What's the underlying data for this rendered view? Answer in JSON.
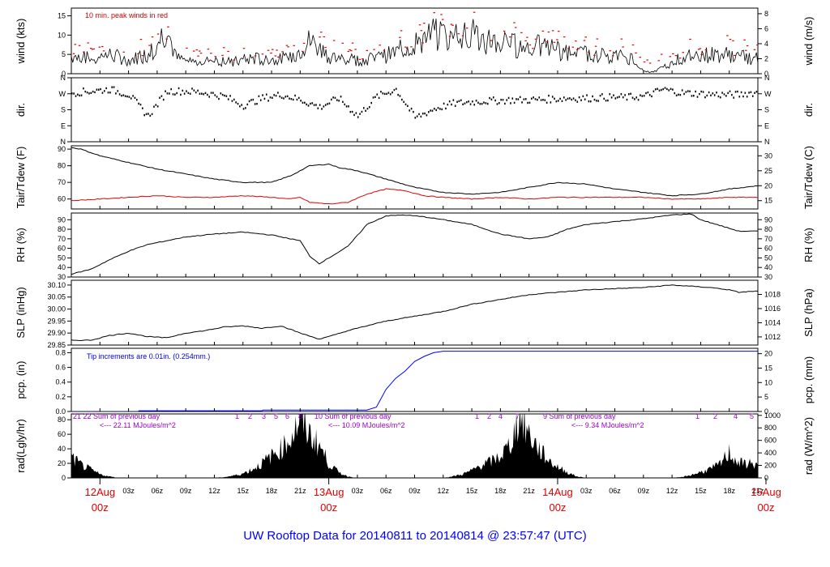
{
  "title": "UW Rooftop Data for 20140811  to  20140814 @ 23:57:47  (UTC)",
  "chart_data": {
    "type": "line",
    "x_axis": {
      "unit": "hours since 12Aug 00z",
      "range": [
        -3,
        69
      ],
      "hour_tick_labels": [
        "03z",
        "06z",
        "09z",
        "12z",
        "15z",
        "18z",
        "21z",
        "03z",
        "06z",
        "09z",
        "12z",
        "15z",
        "18z",
        "21z",
        "03z",
        "06z",
        "09z",
        "12z",
        "15z",
        "18z",
        "21z"
      ],
      "day_labels": [
        {
          "top": "12Aug",
          "bottom": "00z",
          "hour": 0
        },
        {
          "top": "13Aug",
          "bottom": "00z",
          "hour": 24
        },
        {
          "top": "14Aug",
          "bottom": "00z",
          "hour": 48
        },
        {
          "top": "15Aug",
          "bottom": "00z",
          "hour": 72
        }
      ]
    },
    "panels": [
      {
        "id": "wind",
        "left_label": "wind (kts)",
        "right_label": "wind (m/s)",
        "ylim": [
          0,
          17
        ],
        "left_ticks": [
          "0",
          "5",
          "10",
          "15"
        ],
        "left_tick_values": [
          0,
          5,
          10,
          15
        ],
        "right_ticks": [
          "0",
          "2",
          "4",
          "6",
          "8"
        ],
        "right_tick_values": [
          0,
          3.89,
          7.78,
          11.66,
          15.55
        ],
        "annotation": "10 min. peak winds in red",
        "colors": {
          "mean": "#000000",
          "peak": "#e00000"
        },
        "series": [
          {
            "name": "mean",
            "x": [
              -3,
              -1,
              1,
              3,
              5,
              6,
              7,
              8,
              10,
              12,
              14,
              16,
              18,
              20,
              22,
              23,
              24,
              25,
              27,
              29,
              31,
              33,
              35,
              37,
              38,
              40,
              42,
              44,
              46,
              48,
              50,
              52,
              54,
              56,
              57,
              58,
              59,
              60,
              61,
              62,
              64,
              66,
              68
            ],
            "y": [
              4.5,
              4,
              5,
              3.5,
              5,
              8,
              12,
              4,
              3,
              3.5,
              3,
              4,
              3.5,
              4,
              8.5,
              7,
              4.5,
              4,
              3.5,
              4,
              5.5,
              8,
              10,
              9.5,
              12,
              9,
              8,
              7,
              7,
              6,
              5,
              5,
              4.5,
              4,
              0.5,
              0.5,
              1.5,
              3,
              4,
              4.5,
              5,
              5,
              4
            ]
          }
        ]
      },
      {
        "id": "dir",
        "left_label": "dir.",
        "right_label": "dir.",
        "ylim": [
          0,
          360
        ],
        "left_ticks": [
          "N",
          "E",
          "S",
          "W",
          "N"
        ],
        "left_tick_values": [
          0,
          90,
          180,
          270,
          360
        ],
        "right_ticks": [
          "N",
          "E",
          "S",
          "W",
          "N"
        ],
        "right_tick_values": [
          0,
          90,
          180,
          270,
          360
        ],
        "series": [
          {
            "name": "direction",
            "x": [
              -3,
              -1,
              1,
              3,
              5,
              7,
              9,
              11,
              13,
              15,
              17,
              19,
              21,
              23,
              25,
              27,
              29,
              31,
              33,
              35,
              37,
              39,
              41,
              43,
              45,
              47,
              49,
              51,
              53,
              55,
              57,
              59,
              61,
              63,
              65,
              67,
              68
            ],
            "y": [
              280,
              290,
              300,
              270,
              150,
              290,
              290,
              280,
              260,
              210,
              250,
              270,
              240,
              200,
              250,
              150,
              260,
              300,
              140,
              190,
              220,
              230,
              235,
              240,
              240,
              245,
              250,
              250,
              255,
              255,
              260,
              300,
              280,
              275,
              270,
              270,
              280
            ]
          }
        ]
      },
      {
        "id": "temp",
        "left_label": "Tair/Tdew (F)",
        "right_label": "Tair/Tdew (C)",
        "ylim": [
          54,
          92
        ],
        "left_ticks": [
          "60",
          "70",
          "80",
          "90"
        ],
        "left_tick_values": [
          60,
          70,
          80,
          90
        ],
        "right_ticks": [
          "15",
          "20",
          "25",
          "30"
        ],
        "right_tick_values": [
          59,
          68,
          77,
          86
        ],
        "colors": {
          "Tair": "#000000",
          "Tdew": "#e00000"
        },
        "series": [
          {
            "name": "Tair",
            "x": [
              -3,
              -2,
              0,
              3,
              6,
              9,
              12,
              15,
              18,
              20,
              22,
              24,
              25,
              27,
              30,
              33,
              36,
              39,
              42,
              45,
              48,
              51,
              54,
              57,
              60,
              63,
              66,
              69
            ],
            "y": [
              91,
              90,
              86,
              82,
              78,
              75,
              72,
              70,
              70,
              74,
              80,
              81,
              79,
              77,
              72,
              67,
              64,
              63,
              64,
              67,
              70,
              69,
              66,
              64,
              62,
              63,
              66,
              68
            ]
          },
          {
            "name": "Tdew",
            "x": [
              -3,
              0,
              3,
              6,
              9,
              12,
              15,
              18,
              20,
              21,
              22,
              24,
              26,
              28,
              30,
              32,
              34,
              36,
              39,
              42,
              45,
              48,
              51,
              54,
              57,
              60,
              63,
              66,
              69
            ],
            "y": [
              59,
              60,
              61,
              62,
              61,
              61,
              62,
              61,
              60,
              61,
              58,
              57,
              58,
              63,
              66,
              65,
              62,
              61,
              60,
              61,
              60,
              61,
              61,
              61,
              61,
              60,
              60,
              61,
              61
            ]
          }
        ]
      },
      {
        "id": "rh",
        "left_label": "RH (%)",
        "right_label": "RH (%)",
        "ylim": [
          30,
          97
        ],
        "left_ticks": [
          "30",
          "40",
          "50",
          "60",
          "70",
          "80",
          "90"
        ],
        "left_tick_values": [
          30,
          40,
          50,
          60,
          70,
          80,
          90
        ],
        "right_ticks": [
          "30",
          "40",
          "50",
          "60",
          "70",
          "80",
          "90"
        ],
        "right_tick_values": [
          30,
          40,
          50,
          60,
          70,
          80,
          90
        ],
        "series": [
          {
            "name": "RH",
            "x": [
              -3,
              -1,
              1,
              3,
              5,
              7,
              9,
              12,
              15,
              18,
              21,
              22,
              23,
              24,
              26,
              28,
              30,
              32,
              34,
              36,
              39,
              42,
              45,
              47,
              49,
              51,
              54,
              57,
              60,
              62,
              63,
              65,
              67,
              69
            ],
            "y": [
              33,
              38,
              48,
              57,
              64,
              68,
              72,
              75,
              77,
              74,
              68,
              52,
              44,
              50,
              62,
              85,
              94,
              95,
              93,
              90,
              85,
              75,
              70,
              72,
              80,
              85,
              88,
              91,
              95,
              96,
              90,
              84,
              78,
              78
            ]
          }
        ]
      },
      {
        "id": "slp",
        "left_label": "SLP (inHg)",
        "right_label": "SLP (hPa)",
        "ylim": [
          29.85,
          30.12
        ],
        "left_ticks": [
          "29.85",
          "29.90",
          "29.95",
          "30.00",
          "30.05",
          "30.10"
        ],
        "left_tick_values": [
          29.85,
          29.9,
          29.95,
          30.0,
          30.05,
          30.1
        ],
        "right_ticks": [
          "1012",
          "1014",
          "1016",
          "1018"
        ],
        "right_tick_values": [
          29.884,
          29.943,
          30.002,
          30.061
        ],
        "series": [
          {
            "name": "SLP",
            "x": [
              -3,
              -1,
              1,
              3,
              5,
              7,
              9,
              11,
              13,
              15,
              17,
              19,
              21,
              23,
              24,
              26,
              28,
              30,
              33,
              36,
              39,
              42,
              45,
              48,
              51,
              54,
              57,
              60,
              62,
              64,
              66,
              67,
              69
            ],
            "y": [
              29.87,
              29.87,
              29.89,
              29.9,
              29.885,
              29.88,
              29.9,
              29.91,
              29.925,
              29.93,
              29.92,
              29.93,
              29.9,
              29.875,
              29.885,
              29.91,
              29.93,
              29.95,
              29.97,
              29.99,
              30.02,
              30.04,
              30.06,
              30.07,
              30.08,
              30.085,
              30.09,
              30.1,
              30.095,
              30.09,
              30.08,
              30.07,
              30.075
            ]
          }
        ]
      },
      {
        "id": "pcp",
        "left_label": "pcp. (in)",
        "right_label": "pcp. (mm)",
        "ylim": [
          0,
          0.86
        ],
        "left_ticks": [
          "0.0",
          "0.2",
          "0.4",
          "0.6",
          "0.8"
        ],
        "left_tick_values": [
          0,
          0.2,
          0.4,
          0.6,
          0.8
        ],
        "right_ticks": [
          "0",
          "5",
          "10",
          "15",
          "20"
        ],
        "right_tick_values": [
          0,
          0.197,
          0.394,
          0.591,
          0.787
        ],
        "annotation": "Tip increments are 0.01in. (0.254mm.)",
        "colors": {
          "precip": "#0000ff"
        },
        "series": [
          {
            "name": "precip",
            "x": [
              -3,
              4,
              4.1,
              17,
              17.1,
              28,
              29,
              30,
              31,
              32,
              33,
              34,
              35,
              36,
              69
            ],
            "y": [
              0,
              0,
              0.01,
              0.01,
              0.02,
              0.02,
              0.06,
              0.3,
              0.45,
              0.55,
              0.68,
              0.75,
              0.8,
              0.82,
              0.82
            ]
          }
        ]
      },
      {
        "id": "rad",
        "left_label": "rad(Lgly/hr)",
        "right_label": "rad (W/m^2)",
        "ylim": [
          0,
          88
        ],
        "left_ticks": [
          "0",
          "20",
          "40",
          "60",
          "80"
        ],
        "left_tick_values": [
          0,
          20,
          40,
          60,
          80
        ],
        "right_ticks": [
          "0",
          "200",
          "400",
          "600",
          "800",
          "1000"
        ],
        "right_tick_values": [
          0,
          17.2,
          34.4,
          51.6,
          68.8,
          86
        ],
        "colors": {
          "fill": "#000000",
          "hour_labels": "#9900cc"
        },
        "series": [
          {
            "name": "radiation",
            "x": [
              -3,
              -2,
              0,
              1,
              2,
              3,
              12,
              13,
              14,
              15,
              16,
              17,
              18,
              19,
              20,
              21,
              22,
              23,
              24,
              25,
              26,
              27,
              36,
              37,
              38,
              39,
              40,
              41,
              42,
              43,
              44,
              45,
              46,
              47,
              48,
              49,
              50,
              51,
              60,
              61,
              62,
              63,
              64,
              65,
              66,
              67,
              68,
              69
            ],
            "y": [
              28,
              18,
              5,
              2,
              0,
              0,
              0,
              1,
              3,
              6,
              12,
              20,
              30,
              40,
              55,
              80,
              60,
              45,
              20,
              8,
              2,
              0,
              0,
              2,
              5,
              10,
              18,
              22,
              30,
              45,
              85,
              60,
              40,
              25,
              15,
              8,
              2,
              0,
              0,
              1,
              4,
              8,
              12,
              18,
              35,
              20,
              20,
              18
            ]
          }
        ],
        "daily_notes": [
          {
            "hours_label": "21    22   Sum of previous day",
            "sum": "<--- 22.11 MJoules/m^2"
          },
          {
            "hours_label": "10   Sum of previous day",
            "sum": "<--- 10.09 MJoules/m^2"
          },
          {
            "hours_label": "9    Sum of previous day",
            "sum": "<--- 9.34 MJoules/m^2"
          }
        ],
        "hour_marks": [
          "1",
          "2",
          "3",
          "5",
          "6",
          "8",
          "1",
          "2",
          "4",
          "7",
          "1",
          "2",
          "4",
          "5"
        ]
      }
    ]
  }
}
